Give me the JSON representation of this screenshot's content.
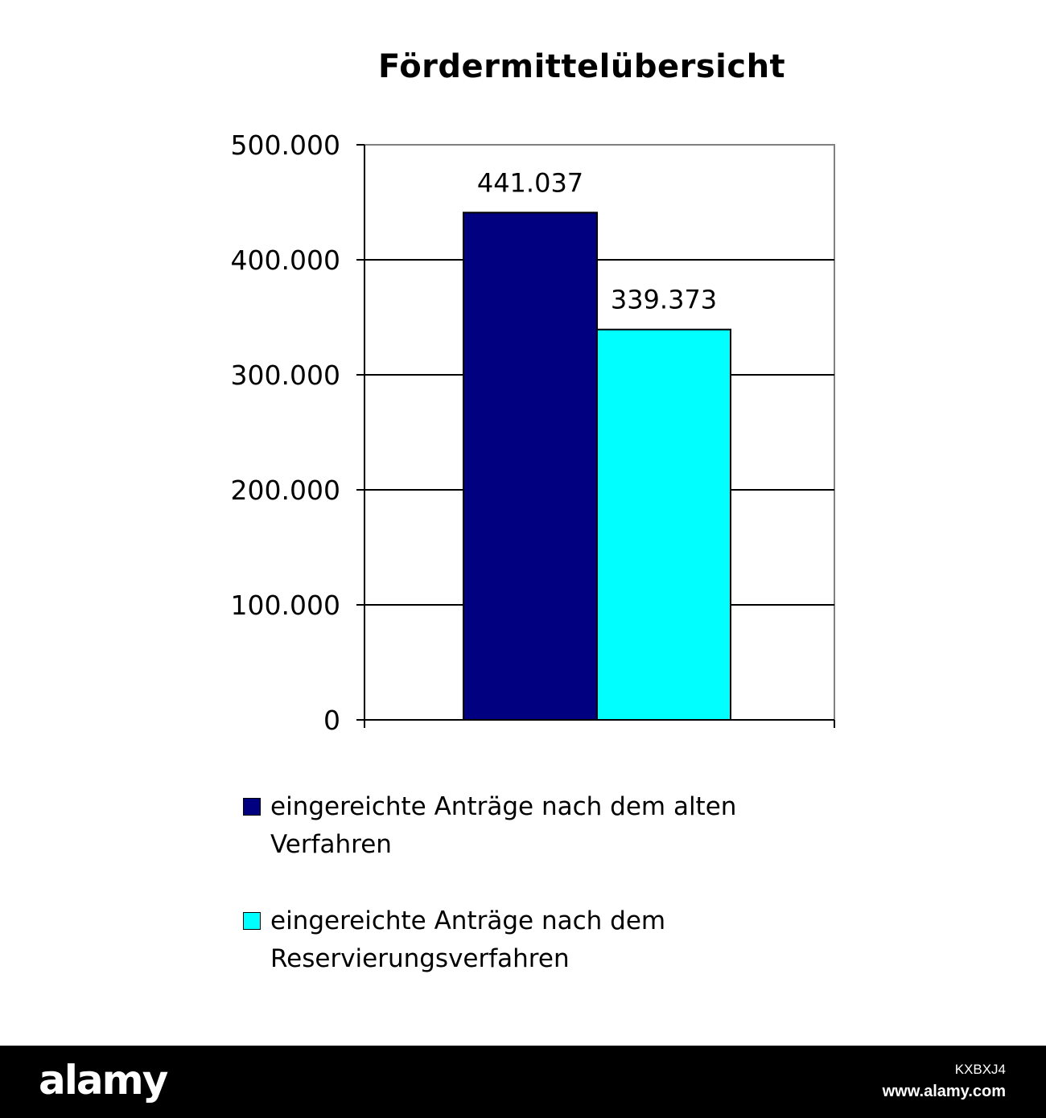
{
  "chart_data": {
    "type": "bar",
    "title": "Fördermittelübersicht",
    "categories": [
      ""
    ],
    "series": [
      {
        "name": "eingereichte Anträge nach dem alten Verfahren",
        "values": [
          441037
        ],
        "label": "441.037",
        "color": "#000080"
      },
      {
        "name": "eingereichte Anträge nach dem Reservierungsverfahren",
        "values": [
          339373
        ],
        "label": "339.373",
        "color": "#00ffff"
      }
    ],
    "ylim": [
      0,
      500000
    ],
    "yticks": [
      0,
      100000,
      200000,
      300000,
      400000,
      500000
    ],
    "ytick_labels": [
      "0",
      "100.000",
      "200.000",
      "300.000",
      "400.000",
      "500.000"
    ],
    "xlabel": "",
    "ylabel": "",
    "grid": true,
    "legend_position": "bottom"
  },
  "footer": {
    "logo": "alamy",
    "image_id": "KXBXJ4",
    "url": "www.alamy.com"
  }
}
